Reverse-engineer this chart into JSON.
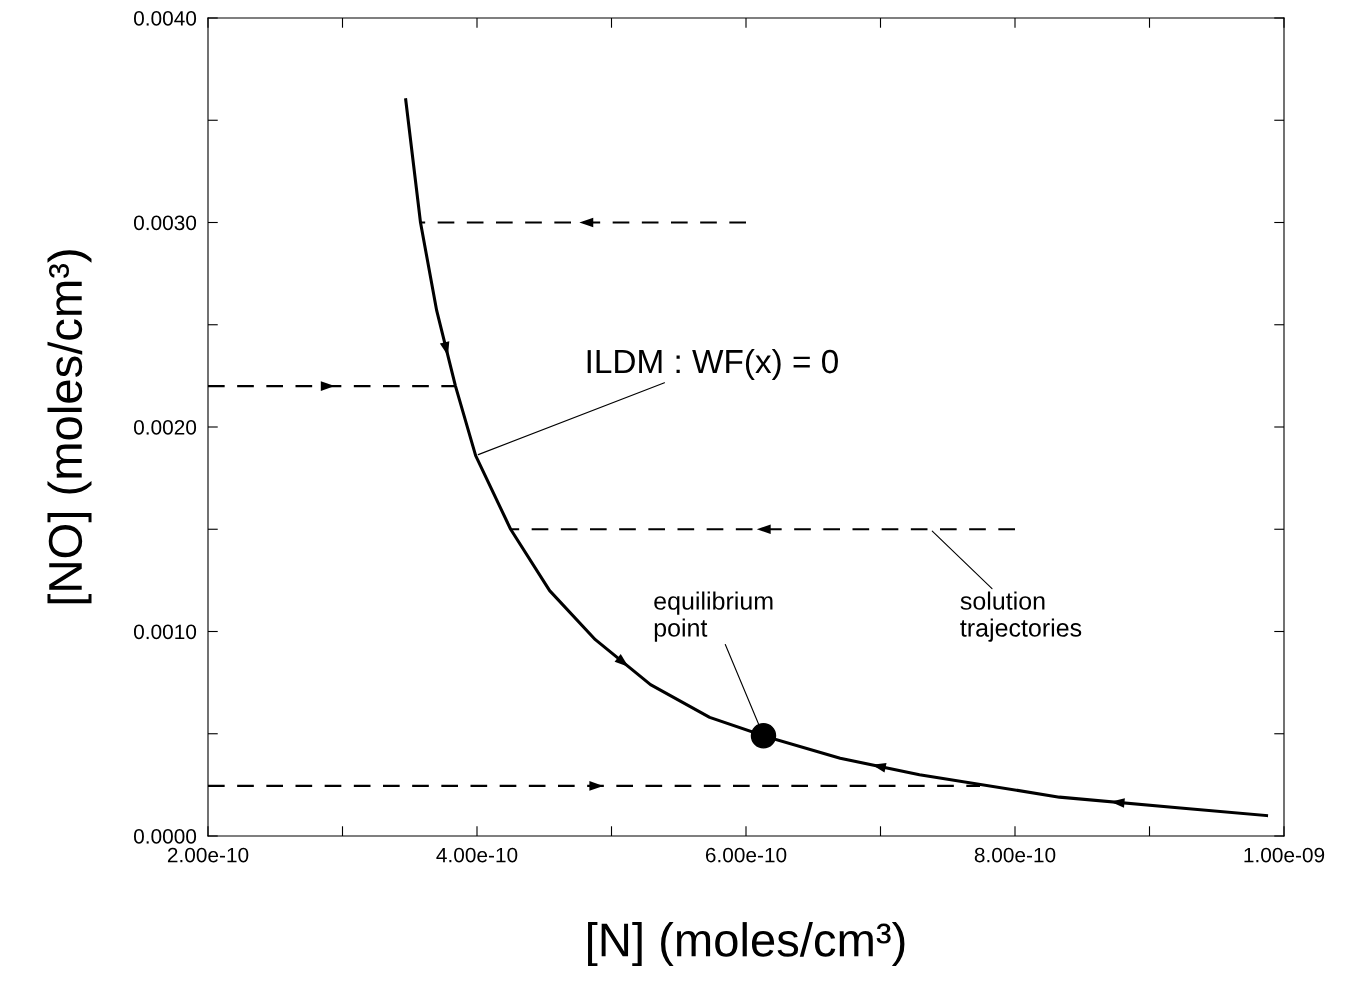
{
  "chart_data": {
    "type": "line",
    "xlabel": "[N] (moles/cm³)",
    "ylabel": "[NO] (moles/cm³)",
    "xlim": [
      2e-10,
      1e-09
    ],
    "ylim": [
      0,
      0.004
    ],
    "xticks": [
      {
        "value": 2e-10,
        "label": "2.00e-10"
      },
      {
        "value": 3e-10,
        "label": null
      },
      {
        "value": 4e-10,
        "label": "4.00e-10"
      },
      {
        "value": 5e-10,
        "label": null
      },
      {
        "value": 6e-10,
        "label": "6.00e-10"
      },
      {
        "value": 7e-10,
        "label": null
      },
      {
        "value": 8e-10,
        "label": "8.00e-10"
      },
      {
        "value": 9e-10,
        "label": null
      },
      {
        "value": 1e-09,
        "label": "1.00e-09"
      }
    ],
    "yticks": [
      {
        "value": 0,
        "label": "0.0000"
      },
      {
        "value": 0.0005,
        "label": null
      },
      {
        "value": 0.001,
        "label": "0.0010"
      },
      {
        "value": 0.0015,
        "label": null
      },
      {
        "value": 0.002,
        "label": "0.0020"
      },
      {
        "value": 0.0025,
        "label": null
      },
      {
        "value": 0.003,
        "label": "0.0030"
      },
      {
        "value": 0.0035,
        "label": null
      },
      {
        "value": 0.004,
        "label": "0.0040"
      }
    ],
    "grid": false,
    "legend": false,
    "series": [
      {
        "color": "#000000",
        "line_style": "solid",
        "x": [
          3.47e-10,
          3.58e-10,
          3.7e-10,
          3.84e-10,
          3.99e-10,
          4.25e-10,
          4.54e-10,
          4.88e-10,
          5.29e-10,
          5.73e-10,
          6.13e-10
        ],
        "values": [
          0.0036,
          0.003,
          0.00257,
          0.0022,
          0.00186,
          0.0015,
          0.0012,
          0.00096,
          0.00074,
          0.00058,
          0.00049
        ]
      },
      {
        "color": "#000000",
        "line_style": "solid",
        "x": [
          9.87e-10,
          9.23e-10,
          8.33e-10,
          7.29e-10,
          6.7e-10,
          6.13e-10
        ],
        "values": [
          0.0001,
          0.000137,
          0.00019,
          0.0003,
          0.00038,
          0.00049
        ]
      },
      {
        "color": "#000000",
        "line_style": "dashed",
        "x": [
          6e-10,
          3.58e-10
        ],
        "values": [
          0.003,
          0.003
        ]
      },
      {
        "color": "#000000",
        "line_style": "dashed",
        "x": [
          2e-10,
          3.84e-10
        ],
        "values": [
          0.0022,
          0.0022
        ]
      },
      {
        "color": "#000000",
        "line_style": "dashed",
        "x": [
          8e-10,
          4.25e-10
        ],
        "values": [
          0.0015,
          0.0015
        ]
      },
      {
        "color": "#000000",
        "line_style": "dashed",
        "x": [
          2e-10,
          7.74e-10
        ],
        "values": [
          0.000245,
          0.000245
        ]
      },
      {
        "type": "scatter",
        "marker": "circle",
        "color": "#000000",
        "x": [
          6.13e-10
        ],
        "values": [
          0.00049
        ]
      }
    ],
    "annotations": [
      {
        "text": "ILDM : WF(x) = 0",
        "x": 3.99e-10,
        "y": 0.00186
      },
      {
        "text": "equilibrium\npoint",
        "x": 6.13e-10,
        "y": 0.00049
      },
      {
        "text": "solution\ntrajectories",
        "x": 7.37e-10,
        "y": 0.0015
      }
    ]
  }
}
